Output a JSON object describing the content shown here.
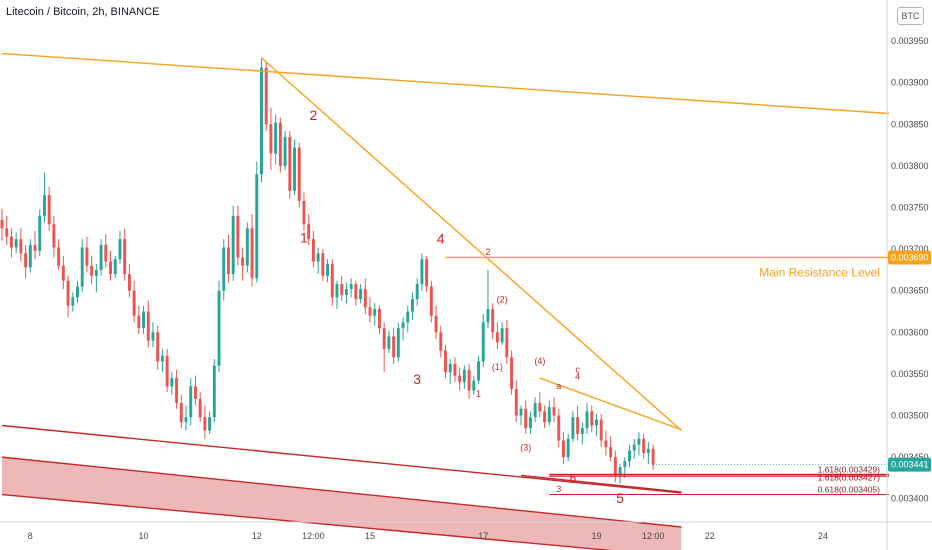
{
  "header": {
    "title": "Litecoin / Bitcoin, 2h, BINANCE",
    "currency_button": "BTC"
  },
  "colors": {
    "up": "#26a69a",
    "down": "#ef5350",
    "trend": "#f7a21b",
    "support": "#c62828",
    "fib": "#c62828",
    "wave": "#c62828",
    "band_fill": "#e8a0a0"
  },
  "chart_data": {
    "type": "candlestick",
    "symbol": "Litecoin / Bitcoin",
    "interval": "2h",
    "exchange": "BINANCE",
    "y_axis": {
      "min": 0.00336,
      "max": 0.003985,
      "ticks": [
        "0.003950",
        "0.003900",
        "0.003850",
        "0.003800",
        "0.003750",
        "0.003700",
        "0.003650",
        "0.003600",
        "0.003550",
        "0.003500",
        "0.003450",
        "0.003400"
      ]
    },
    "x_axis": {
      "ticks": [
        {
          "i": 6,
          "label": "8"
        },
        {
          "i": 30,
          "label": "10"
        },
        {
          "i": 54,
          "label": "12"
        },
        {
          "i": 66,
          "label": "12:00"
        },
        {
          "i": 78,
          "label": "15"
        },
        {
          "i": 102,
          "label": "17"
        },
        {
          "i": 126,
          "label": "19"
        },
        {
          "i": 138,
          "label": "12:00"
        },
        {
          "i": 150,
          "label": "22"
        },
        {
          "i": 174,
          "label": "24"
        }
      ]
    },
    "x_span": [
      0,
      188
    ],
    "last_price": "0.003441",
    "resistance_level": "0.003690",
    "candles": [
      [
        0.003735,
        0.003748,
        0.00371,
        0.003725
      ],
      [
        0.003725,
        0.00374,
        0.003705,
        0.003715
      ],
      [
        0.003715,
        0.003725,
        0.00369,
        0.003702
      ],
      [
        0.003702,
        0.00372,
        0.003695,
        0.003712
      ],
      [
        0.003712,
        0.003725,
        0.003685,
        0.003695
      ],
      [
        0.003695,
        0.003705,
        0.003665,
        0.003678
      ],
      [
        0.003678,
        0.003712,
        0.003672,
        0.003705
      ],
      [
        0.003705,
        0.003722,
        0.003688,
        0.003698
      ],
      [
        0.003698,
        0.003748,
        0.003692,
        0.00374
      ],
      [
        0.00374,
        0.003792,
        0.003732,
        0.003765
      ],
      [
        0.003765,
        0.003775,
        0.003722,
        0.00373
      ],
      [
        0.00373,
        0.00374,
        0.00369,
        0.003702
      ],
      [
        0.003702,
        0.003712,
        0.003675,
        0.00368
      ],
      [
        0.00368,
        0.003692,
        0.003652,
        0.003662
      ],
      [
        0.003662,
        0.003668,
        0.003618,
        0.003632
      ],
      [
        0.003632,
        0.003648,
        0.003625,
        0.003642
      ],
      [
        0.003642,
        0.003662,
        0.003635,
        0.003655
      ],
      [
        0.003655,
        0.003712,
        0.003648,
        0.003702
      ],
      [
        0.003702,
        0.003715,
        0.003672,
        0.00368
      ],
      [
        0.00368,
        0.003692,
        0.003658,
        0.003668
      ],
      [
        0.003668,
        0.003682,
        0.003648,
        0.003675
      ],
      [
        0.003675,
        0.003712,
        0.003668,
        0.003705
      ],
      [
        0.003705,
        0.003718,
        0.003678,
        0.003685
      ],
      [
        0.003685,
        0.003698,
        0.003662,
        0.00367
      ],
      [
        0.00367,
        0.003692,
        0.003665,
        0.003688
      ],
      [
        0.003688,
        0.003722,
        0.003682,
        0.003712
      ],
      [
        0.003712,
        0.003725,
        0.003662,
        0.00367
      ],
      [
        0.00367,
        0.003682,
        0.003642,
        0.00365
      ],
      [
        0.00365,
        0.003662,
        0.003612,
        0.00362
      ],
      [
        0.00362,
        0.003632,
        0.003598,
        0.003605
      ],
      [
        0.003605,
        0.003632,
        0.003598,
        0.003625
      ],
      [
        0.003625,
        0.003638,
        0.003582,
        0.00359
      ],
      [
        0.00359,
        0.003612,
        0.003582,
        0.0036
      ],
      [
        0.0036,
        0.003608,
        0.003555,
        0.003565
      ],
      [
        0.003565,
        0.00358,
        0.003552,
        0.003572
      ],
      [
        0.003572,
        0.00358,
        0.003528,
        0.003535
      ],
      [
        0.003535,
        0.003552,
        0.003525,
        0.003545
      ],
      [
        0.003545,
        0.003555,
        0.003508,
        0.003515
      ],
      [
        0.003515,
        0.003525,
        0.003485,
        0.003492
      ],
      [
        0.003492,
        0.003512,
        0.003482,
        0.003498
      ],
      [
        0.003498,
        0.003545,
        0.003488,
        0.003535
      ],
      [
        0.003535,
        0.003548,
        0.003512,
        0.00352
      ],
      [
        0.00352,
        0.003528,
        0.003492,
        0.003498
      ],
      [
        0.003498,
        0.003512,
        0.003472,
        0.003482
      ],
      [
        0.003482,
        0.003505,
        0.003478,
        0.003498
      ],
      [
        0.003498,
        0.003568,
        0.003492,
        0.00356
      ],
      [
        0.00356,
        0.003662,
        0.003552,
        0.00365
      ],
      [
        0.00365,
        0.003712,
        0.003638,
        0.003702
      ],
      [
        0.003702,
        0.003718,
        0.00366,
        0.00367
      ],
      [
        0.00367,
        0.003752,
        0.003662,
        0.00374
      ],
      [
        0.00374,
        0.003752,
        0.00368,
        0.00369
      ],
      [
        0.00369,
        0.003702,
        0.003662,
        0.00368
      ],
      [
        0.00368,
        0.003732,
        0.003672,
        0.003725
      ],
      [
        0.003725,
        0.003742,
        0.003655,
        0.003665
      ],
      [
        0.003665,
        0.003805,
        0.00366,
        0.00379
      ],
      [
        0.00379,
        0.00393,
        0.00378,
        0.003918
      ],
      [
        0.003918,
        0.003925,
        0.003842,
        0.00385
      ],
      [
        0.00385,
        0.00387,
        0.003795,
        0.003815
      ],
      [
        0.003815,
        0.003862,
        0.003802,
        0.003852
      ],
      [
        0.003852,
        0.003858,
        0.003792,
        0.0038
      ],
      [
        0.0038,
        0.003842,
        0.003795,
        0.003835
      ],
      [
        0.003835,
        0.003842,
        0.00376,
        0.00377
      ],
      [
        0.00377,
        0.003832,
        0.003765,
        0.003822
      ],
      [
        0.003822,
        0.003828,
        0.00375,
        0.003758
      ],
      [
        0.003758,
        0.003768,
        0.003722,
        0.00373
      ],
      [
        0.00373,
        0.003742,
        0.003705,
        0.003712
      ],
      [
        0.003712,
        0.003722,
        0.003678,
        0.003685
      ],
      [
        0.003685,
        0.003702,
        0.00367,
        0.003695
      ],
      [
        0.003695,
        0.0037,
        0.003662,
        0.003668
      ],
      [
        0.003668,
        0.003688,
        0.00366,
        0.003682
      ],
      [
        0.003682,
        0.003688,
        0.003632,
        0.003642
      ],
      [
        0.003642,
        0.003662,
        0.003628,
        0.003658
      ],
      [
        0.003658,
        0.003668,
        0.003638,
        0.003645
      ],
      [
        0.003645,
        0.00366,
        0.003635,
        0.003652
      ],
      [
        0.003652,
        0.003665,
        0.003642,
        0.003658
      ],
      [
        0.003658,
        0.003662,
        0.003632,
        0.00364
      ],
      [
        0.00364,
        0.003658,
        0.003635,
        0.003652
      ],
      [
        0.003652,
        0.003665,
        0.003622,
        0.00363
      ],
      [
        0.00363,
        0.003642,
        0.003612,
        0.00362
      ],
      [
        0.00362,
        0.003635,
        0.003608,
        0.003628
      ],
      [
        0.003628,
        0.003632,
        0.003598,
        0.003605
      ],
      [
        0.003605,
        0.003612,
        0.003552,
        0.00358
      ],
      [
        0.00358,
        0.003602,
        0.003575,
        0.003595
      ],
      [
        0.003595,
        0.003605,
        0.003562,
        0.00357
      ],
      [
        0.00357,
        0.003612,
        0.003565,
        0.003605
      ],
      [
        0.003605,
        0.003618,
        0.00359,
        0.003612
      ],
      [
        0.003612,
        0.003632,
        0.0036,
        0.003625
      ],
      [
        0.003625,
        0.003648,
        0.003615,
        0.00364
      ],
      [
        0.00364,
        0.003665,
        0.003632,
        0.003658
      ],
      [
        0.003658,
        0.003695,
        0.00365,
        0.003688
      ],
      [
        0.003688,
        0.003692,
        0.003648,
        0.003655
      ],
      [
        0.003655,
        0.003662,
        0.003612,
        0.00362
      ],
      [
        0.00362,
        0.003632,
        0.003592,
        0.0036
      ],
      [
        0.0036,
        0.003608,
        0.00357,
        0.003578
      ],
      [
        0.003578,
        0.003585,
        0.003545,
        0.003552
      ],
      [
        0.003552,
        0.003568,
        0.003538,
        0.003562
      ],
      [
        0.003562,
        0.00357,
        0.00354,
        0.003548
      ],
      [
        0.003548,
        0.003558,
        0.00353,
        0.00354
      ],
      [
        0.00354,
        0.00356,
        0.003532,
        0.003555
      ],
      [
        0.003555,
        0.003562,
        0.00352,
        0.00353
      ],
      [
        0.00353,
        0.003548,
        0.003525,
        0.003542
      ],
      [
        0.003542,
        0.003572,
        0.003538,
        0.003565
      ],
      [
        0.003565,
        0.003622,
        0.003558,
        0.003612
      ],
      [
        0.003612,
        0.003675,
        0.003605,
        0.003628
      ],
      [
        0.003628,
        0.003635,
        0.003592,
        0.0036
      ],
      [
        0.0036,
        0.003612,
        0.00358,
        0.003588
      ],
      [
        0.003588,
        0.003612,
        0.003585,
        0.003605
      ],
      [
        0.003605,
        0.003615,
        0.003562,
        0.00357
      ],
      [
        0.00357,
        0.003578,
        0.003525,
        0.003532
      ],
      [
        0.003532,
        0.003542,
        0.003492,
        0.0035
      ],
      [
        0.0035,
        0.003512,
        0.003488,
        0.003508
      ],
      [
        0.003508,
        0.003518,
        0.003478,
        0.003485
      ],
      [
        0.003485,
        0.003505,
        0.003478,
        0.003498
      ],
      [
        0.003498,
        0.003522,
        0.003492,
        0.003515
      ],
      [
        0.003515,
        0.003528,
        0.003498,
        0.003505
      ],
      [
        0.003505,
        0.003512,
        0.003485,
        0.003492
      ],
      [
        0.003492,
        0.003518,
        0.003488,
        0.00351
      ],
      [
        0.00351,
        0.003522,
        0.003492,
        0.0035
      ],
      [
        0.0035,
        0.003508,
        0.003462,
        0.00347
      ],
      [
        0.00347,
        0.00348,
        0.003442,
        0.00345
      ],
      [
        0.00345,
        0.003478,
        0.003445,
        0.003472
      ],
      [
        0.003472,
        0.003505,
        0.003468,
        0.003498
      ],
      [
        0.003498,
        0.003512,
        0.00347,
        0.003478
      ],
      [
        0.003478,
        0.003492,
        0.003465,
        0.003485
      ],
      [
        0.003485,
        0.003515,
        0.003478,
        0.003505
      ],
      [
        0.003505,
        0.003512,
        0.00348,
        0.003488
      ],
      [
        0.003488,
        0.003502,
        0.003475,
        0.003495
      ],
      [
        0.003495,
        0.003502,
        0.003462,
        0.00347
      ],
      [
        0.00347,
        0.003482,
        0.003452,
        0.003462
      ],
      [
        0.003462,
        0.003475,
        0.003445,
        0.00345
      ],
      [
        0.00345,
        0.003458,
        0.00342,
        0.003428
      ],
      [
        0.003428,
        0.003442,
        0.003418,
        0.003438
      ],
      [
        0.003438,
        0.00345,
        0.003425,
        0.003445
      ],
      [
        0.003445,
        0.003465,
        0.003438,
        0.003458
      ],
      [
        0.003458,
        0.003472,
        0.003448,
        0.003465
      ],
      [
        0.003465,
        0.00348,
        0.003452,
        0.003472
      ],
      [
        0.003472,
        0.003478,
        0.003448,
        0.003455
      ],
      [
        0.003455,
        0.003468,
        0.003442,
        0.00346
      ],
      [
        0.00346,
        0.003465,
        0.003435,
        0.003441
      ]
    ],
    "trend_lines": [
      {
        "name": "upper-channel-line",
        "from": [
          0,
          0.003935
        ],
        "to": [
          188,
          0.003863
        ]
      },
      {
        "name": "descending-trendline",
        "from": [
          55,
          0.00393
        ],
        "to": [
          144,
          0.003482
        ]
      },
      {
        "name": "wedge-upper-line",
        "from": [
          114,
          0.003545
        ],
        "to": [
          144,
          0.003483
        ]
      },
      {
        "name": "resistance-line",
        "from": [
          94,
          0.00369
        ],
        "to": [
          188,
          0.00369
        ]
      }
    ],
    "support_lines": [
      {
        "name": "lower-channel-line",
        "from": [
          0,
          0.003488
        ],
        "to": [
          144,
          0.003407
        ]
      },
      {
        "name": "wedge-lower-line",
        "from": [
          110,
          0.003428
        ],
        "to": [
          144,
          0.003408
        ]
      }
    ],
    "band": {
      "top_from": [
        0,
        0.00345
      ],
      "top_to": [
        144,
        0.003366
      ],
      "bottom_from": [
        0,
        0.003405
      ],
      "bottom_to": [
        144,
        0.00333
      ]
    },
    "fib_levels": [
      {
        "name": "fib-1618-label",
        "label": "1.618(0.003429)",
        "value": 0.003429,
        "from": 116,
        "to": 188
      },
      {
        "name": "fib-1618-label-2",
        "label": "1.618(0.003427)",
        "value": 0.003427,
        "from": 116,
        "to": 188
      },
      {
        "name": "fib-0618-label",
        "label": "0.618(0.003405)",
        "value": 0.003405,
        "from": 116,
        "to": 188
      }
    ],
    "wave_labels": [
      {
        "text": "2",
        "x": 66,
        "y": 0.003855,
        "size": "big"
      },
      {
        "text": "1",
        "x": 64,
        "y": 0.003708,
        "size": "big"
      },
      {
        "text": "4",
        "x": 93,
        "y": 0.003707,
        "size": "big"
      },
      {
        "text": "3",
        "x": 88,
        "y": 0.003538,
        "size": "big"
      },
      {
        "text": "5",
        "x": 131,
        "y": 0.003395,
        "size": "big"
      },
      {
        "text": "2",
        "x": 103,
        "y": 0.003693,
        "size": "small"
      },
      {
        "text": "(2)",
        "x": 106,
        "y": 0.003636,
        "size": "small"
      },
      {
        "text": "(1)",
        "x": 105,
        "y": 0.003555,
        "size": "small"
      },
      {
        "text": "(4)",
        "x": 114,
        "y": 0.003562,
        "size": "small"
      },
      {
        "text": "1",
        "x": 101,
        "y": 0.003522,
        "size": "small"
      },
      {
        "text": "c",
        "x": 122,
        "y": 0.003552,
        "size": "small"
      },
      {
        "text": "4",
        "x": 122,
        "y": 0.003543,
        "size": "small"
      },
      {
        "text": "a",
        "x": 118,
        "y": 0.003532,
        "size": "small"
      },
      {
        "text": "(3)",
        "x": 111,
        "y": 0.003458,
        "size": "small"
      },
      {
        "text": "b",
        "x": 121,
        "y": 0.003419,
        "size": "big-b"
      },
      {
        "text": "3",
        "x": 118,
        "y": 0.003408,
        "size": "small"
      }
    ],
    "annotations": [
      {
        "text": "Main Resistance Level",
        "value": 0.00369
      }
    ]
  }
}
